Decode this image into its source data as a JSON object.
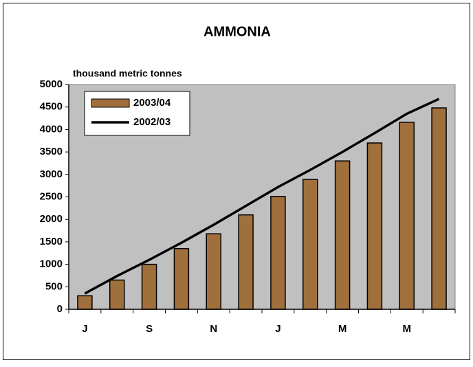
{
  "chart_data": {
    "type": "bar",
    "title": "AMMONIA",
    "y_label": "thousand metric tonnes",
    "categories": [
      "J",
      null,
      "S",
      null,
      "N",
      null,
      "J",
      null,
      "M",
      null,
      "M",
      null
    ],
    "series": [
      {
        "name": "2003/04",
        "type": "bar",
        "color": "#a0703c",
        "values": [
          300,
          650,
          1000,
          1350,
          1680,
          2100,
          2510,
          2890,
          3300,
          3700,
          4160,
          4480
        ]
      },
      {
        "name": "2002/03",
        "type": "line",
        "color": "#000000",
        "values": [
          350,
          740,
          1100,
          1480,
          1880,
          2300,
          2720,
          3100,
          3500,
          3920,
          4350,
          4680
        ]
      }
    ],
    "ylim": [
      0,
      5000
    ],
    "yticks": [
      0,
      500,
      1000,
      1500,
      2000,
      2500,
      3000,
      3500,
      4000,
      4500,
      5000
    ],
    "legend": "upper left",
    "plot_background": "#c0c0c0"
  }
}
